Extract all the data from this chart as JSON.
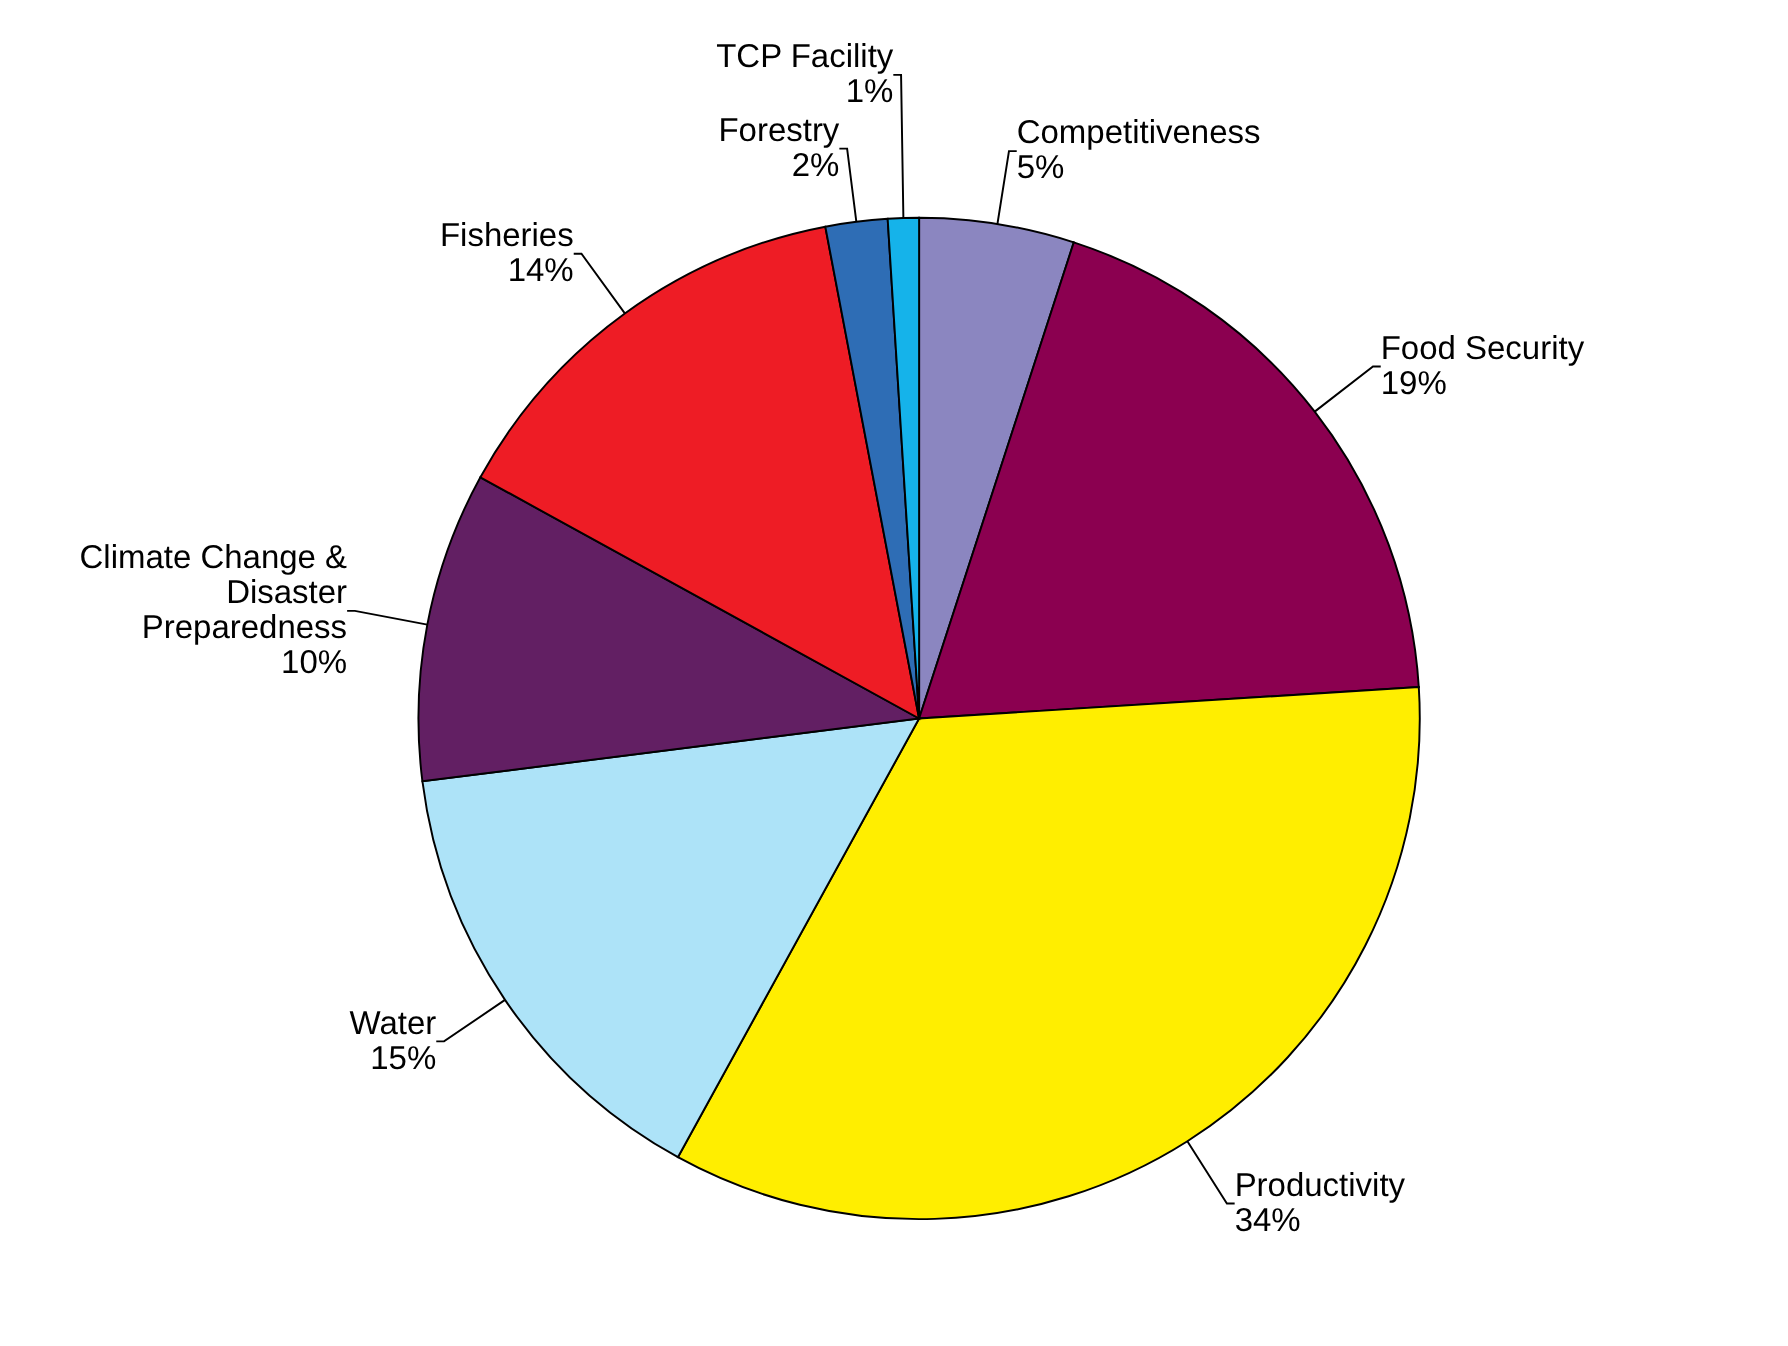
{
  "chart_data": {
    "type": "pie",
    "categories": [
      "Competitiveness",
      "Food Security",
      "Productivity",
      "Water",
      "Climate Change & Disaster Preparedness",
      "Fisheries",
      "Forestry",
      "TCP Facility"
    ],
    "values": [
      5,
      19,
      34,
      15,
      10,
      14,
      2,
      1
    ],
    "value_labels": [
      "5%",
      "19%",
      "34%",
      "15%",
      "10%",
      "14%",
      "2%",
      "1%"
    ],
    "colors": [
      "#8b86c0",
      "#8b0050",
      "#ffee00",
      "#ade3f8",
      "#621f63",
      "#ee1c25",
      "#2e6db5",
      "#15b3ea"
    ]
  }
}
